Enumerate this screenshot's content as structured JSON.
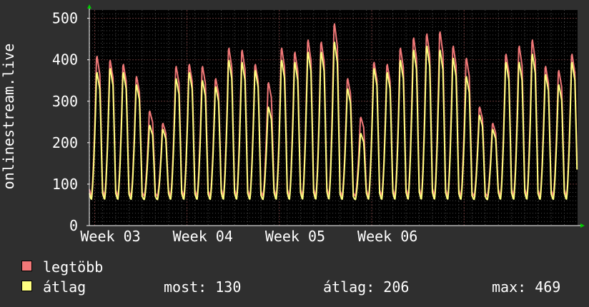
{
  "chart_data": {
    "type": "line",
    "ylabel": "onlinestream.live",
    "ylim": [
      0,
      520
    ],
    "yticks": [
      0,
      100,
      200,
      300,
      400,
      500
    ],
    "x_tick_labels": [
      "Week 03",
      "Week 04",
      "Week 05",
      "Week 06"
    ],
    "grid": true,
    "days": 37,
    "daily_peaks_max": [
      415,
      405,
      395,
      365,
      280,
      250,
      390,
      395,
      390,
      360,
      435,
      430,
      395,
      350,
      435,
      425,
      455,
      450,
      495,
      360,
      265,
      400,
      395,
      435,
      460,
      470,
      475,
      440,
      410,
      290,
      250,
      420,
      440,
      455,
      390,
      380,
      420
    ],
    "daily_peaks_avg": [
      375,
      385,
      375,
      345,
      245,
      235,
      360,
      375,
      355,
      340,
      405,
      400,
      380,
      290,
      405,
      400,
      425,
      425,
      450,
      335,
      225,
      385,
      375,
      405,
      430,
      440,
      430,
      410,
      365,
      270,
      235,
      400,
      400,
      420,
      370,
      345,
      400
    ],
    "series": [
      {
        "name": "legtöbb",
        "color": "#f07878"
      },
      {
        "name": "átlag",
        "color": "#ffff80"
      }
    ],
    "legend_position": "bottom-left"
  },
  "legend": {
    "max_label": "legtöbb",
    "avg_label": "átlag",
    "max_color": "#f07878",
    "avg_color": "#ffff80"
  },
  "stats": {
    "most": "most: 130",
    "atlag": "átlag: 206",
    "max": "max: 469"
  },
  "colors": {
    "background": "#2f2f2f",
    "plot_background": "#000000",
    "grid": "#4a4a4a",
    "axis_arrow": "#00cc00"
  }
}
